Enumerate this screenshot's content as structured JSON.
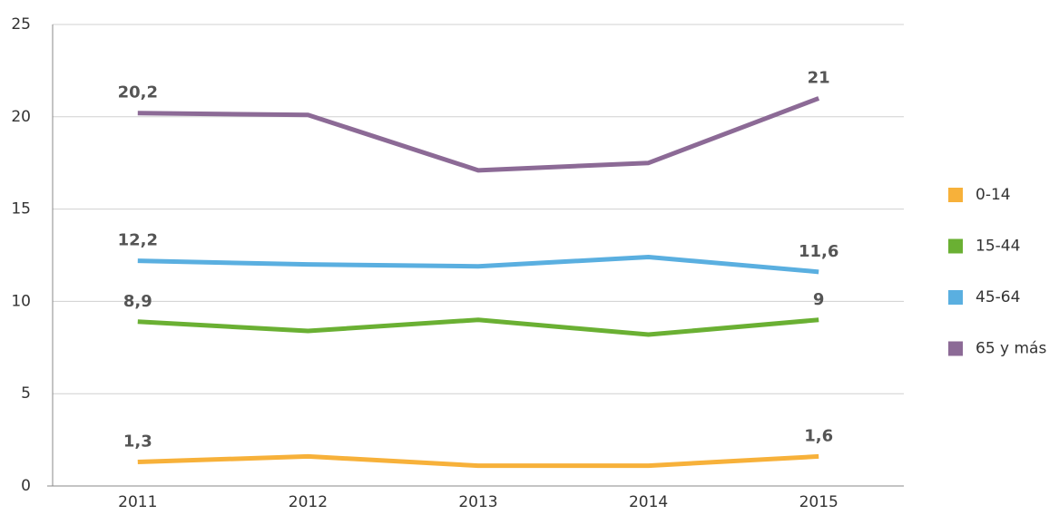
{
  "chart_data": {
    "type": "line",
    "categories": [
      "2011",
      "2012",
      "2013",
      "2014",
      "2015"
    ],
    "series": [
      {
        "name": "0-14",
        "color": "#f7b13a",
        "values": [
          1.3,
          1.6,
          1.1,
          1.1,
          1.6
        ],
        "value_labels": [
          "1,3",
          null,
          null,
          null,
          "1,6"
        ]
      },
      {
        "name": "15-44",
        "color": "#6ab033",
        "values": [
          8.9,
          8.4,
          9.0,
          8.2,
          9
        ],
        "value_labels": [
          "8,9",
          null,
          null,
          null,
          "9"
        ]
      },
      {
        "name": "45-64",
        "color": "#5aafe0",
        "values": [
          12.2,
          12.0,
          11.9,
          12.4,
          11.6
        ],
        "value_labels": [
          "12,2",
          null,
          null,
          null,
          "11,6"
        ]
      },
      {
        "name": "65 y más",
        "color": "#8c6a96",
        "values": [
          20.2,
          20.1,
          17.1,
          17.5,
          21
        ],
        "value_labels": [
          "20,2",
          null,
          null,
          null,
          "21"
        ]
      }
    ],
    "ylim": [
      0,
      25
    ],
    "yticks": [
      0,
      5,
      10,
      15,
      20,
      25
    ],
    "grid": true,
    "legend": "right"
  }
}
